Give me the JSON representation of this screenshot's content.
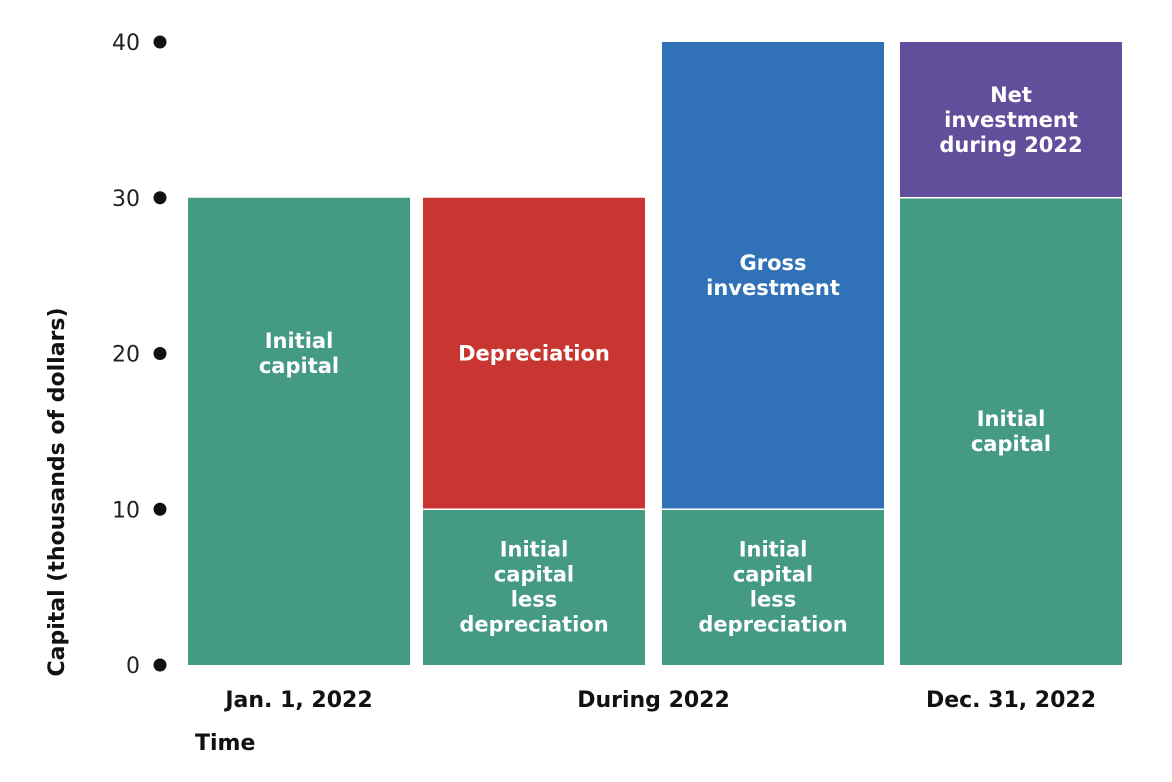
{
  "chart_data": {
    "type": "bar",
    "stacked": true,
    "xlabel": "Time",
    "ylabel": "Capital (thousands of dollars)",
    "ylim": [
      0,
      40
    ],
    "y_ticks": [
      0,
      10,
      20,
      30,
      40
    ],
    "grid": false,
    "legend": "none",
    "categories": [
      "Jan. 1, 2022",
      "During 2022",
      "Dec. 31, 2022"
    ],
    "bars": [
      {
        "segments": [
          {
            "label": "Initial capital",
            "from": 0,
            "to": 30,
            "color": "#459a84"
          }
        ]
      },
      {
        "segments": [
          {
            "label": "Initial capital less depreciation",
            "from": 0,
            "to": 10,
            "color": "#459a84"
          },
          {
            "label": "Depreciation",
            "from": 10,
            "to": 30,
            "color": "#c93632"
          }
        ]
      },
      {
        "segments": [
          {
            "label": "Initial capital less depreciation",
            "from": 0,
            "to": 10,
            "color": "#459a84"
          },
          {
            "label": "Gross investment",
            "from": 10,
            "to": 40,
            "color": "#3171b8"
          }
        ]
      },
      {
        "segments": [
          {
            "label": "Initial capital",
            "from": 0,
            "to": 30,
            "color": "#459a84"
          },
          {
            "label": "Net investment during 2022",
            "from": 30,
            "to": 40,
            "color": "#614f9b"
          }
        ]
      }
    ],
    "category_bars": [
      [
        0
      ],
      [
        1,
        2
      ],
      [
        3
      ]
    ],
    "colors": {
      "capital": "#459a84",
      "depreciation": "#c93632",
      "gross_investment": "#3171b8",
      "net_investment": "#614f9b"
    }
  }
}
